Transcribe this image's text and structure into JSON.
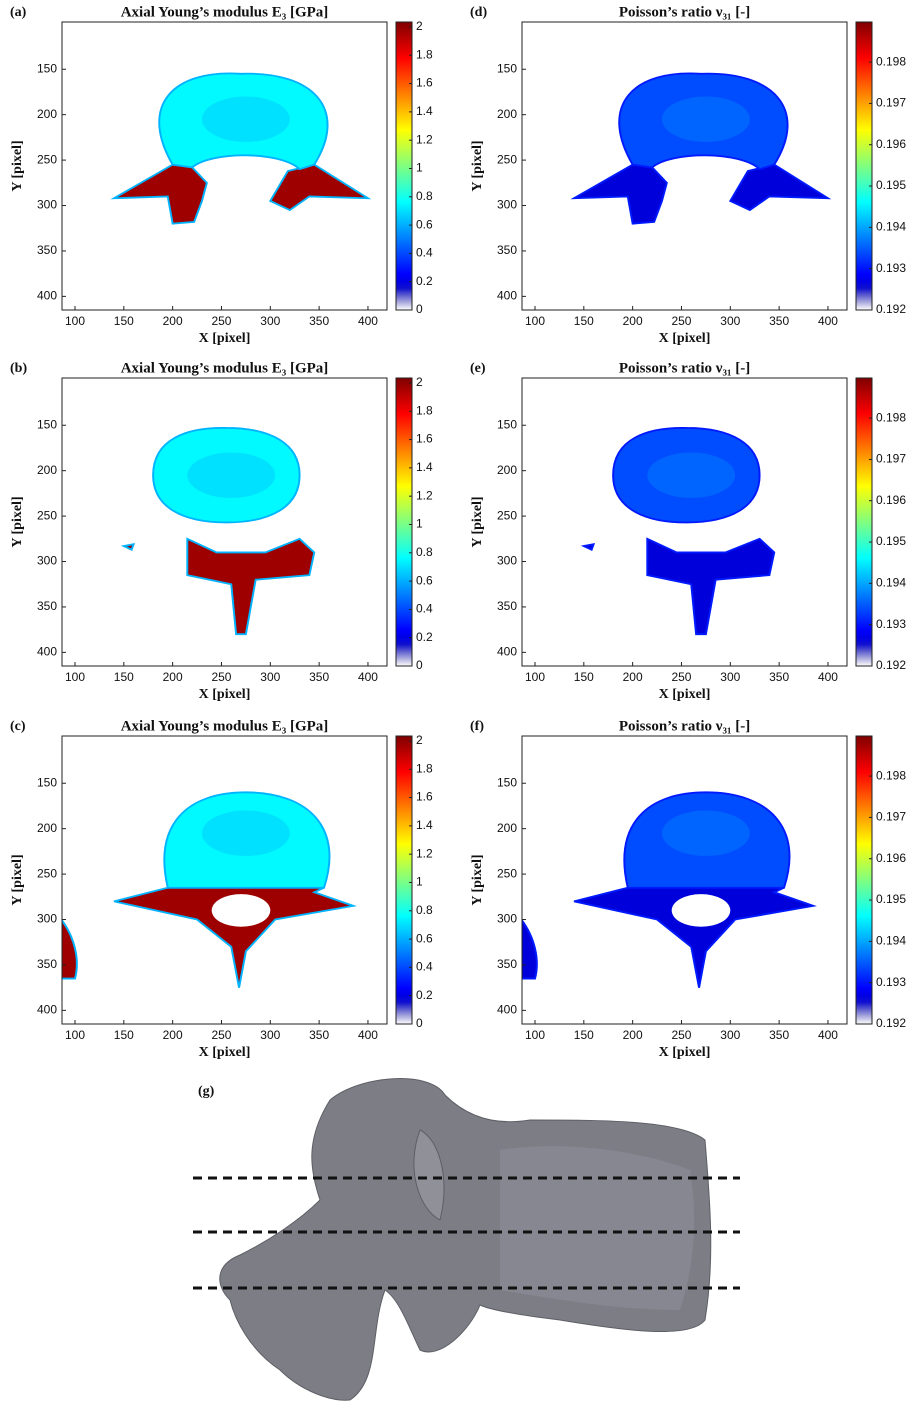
{
  "chart_data": [
    {
      "type": "heatmap",
      "panel_label": "(a)",
      "title": "Axial Young’s modulus E₃ [GPa]",
      "xlabel": "X [pixel]",
      "ylabel": "Y [pixel]",
      "xlim": [
        86.7,
        419.5
      ],
      "ylim": [
        98,
        415
      ],
      "y_reversed": true,
      "xticks": [
        100,
        150,
        200,
        250,
        300,
        350,
        400
      ],
      "yticks": [
        150,
        200,
        250,
        300,
        350,
        400
      ],
      "colormap": "jet",
      "clim": [
        0,
        2.035
      ],
      "cticks": [
        0,
        0.2,
        0.4,
        0.6,
        0.8,
        1,
        1.2,
        1.4,
        1.6,
        1.8,
        2
      ]
    },
    {
      "type": "heatmap",
      "panel_label": "(b)",
      "title": "Axial Young’s modulus E₃ [GPa]",
      "xlabel": "X [pixel]",
      "ylabel": "Y [pixel]",
      "xlim": [
        86.7,
        419.5
      ],
      "ylim": [
        98,
        415
      ],
      "y_reversed": true,
      "xticks": [
        100,
        150,
        200,
        250,
        300,
        350,
        400
      ],
      "yticks": [
        150,
        200,
        250,
        300,
        350,
        400
      ],
      "colormap": "jet",
      "clim": [
        0,
        2.035
      ],
      "cticks": [
        0,
        0.2,
        0.4,
        0.6,
        0.8,
        1,
        1.2,
        1.4,
        1.6,
        1.8,
        2
      ]
    },
    {
      "type": "heatmap",
      "panel_label": "(c)",
      "title": "Axial Young’s modulus E₃ [GPa]",
      "xlabel": "X [pixel]",
      "ylabel": "Y [pixel]",
      "xlim": [
        86.7,
        419.5
      ],
      "ylim": [
        98,
        415
      ],
      "y_reversed": true,
      "xticks": [
        100,
        150,
        200,
        250,
        300,
        350,
        400
      ],
      "yticks": [
        150,
        200,
        250,
        300,
        350,
        400
      ],
      "colormap": "jet",
      "clim": [
        0,
        2.035
      ],
      "cticks": [
        0,
        0.2,
        0.4,
        0.6,
        0.8,
        1,
        1.2,
        1.4,
        1.6,
        1.8,
        2
      ]
    },
    {
      "type": "heatmap",
      "panel_label": "(d)",
      "title": "Poisson’s ratio ν₃₁ [-]",
      "xlabel": "X [pixel]",
      "ylabel": "Y [pixel]",
      "xlim": [
        86.7,
        419.5
      ],
      "ylim": [
        98,
        415
      ],
      "y_reversed": true,
      "xticks": [
        100,
        150,
        200,
        250,
        300,
        350,
        400
      ],
      "yticks": [
        150,
        200,
        250,
        300,
        350,
        400
      ],
      "colormap": "jet",
      "clim": [
        0.192,
        0.19897
      ],
      "cticks": [
        0.192,
        0.193,
        0.194,
        0.195,
        0.196,
        0.197,
        0.198
      ]
    },
    {
      "type": "heatmap",
      "panel_label": "(e)",
      "title": "Poisson’s ratio ν₃₁ [-]",
      "xlabel": "X [pixel]",
      "ylabel": "Y [pixel]",
      "xlim": [
        86.7,
        419.5
      ],
      "ylim": [
        98,
        415
      ],
      "y_reversed": true,
      "xticks": [
        100,
        150,
        200,
        250,
        300,
        350,
        400
      ],
      "yticks": [
        150,
        200,
        250,
        300,
        350,
        400
      ],
      "colormap": "jet",
      "clim": [
        0.192,
        0.19897
      ],
      "cticks": [
        0.192,
        0.193,
        0.194,
        0.195,
        0.196,
        0.197,
        0.198
      ]
    },
    {
      "type": "heatmap",
      "panel_label": "(f)",
      "title": "Poisson’s ratio ν₃₁ [-]",
      "xlabel": "X [pixel]",
      "ylabel": "Y [pixel]",
      "xlim": [
        86.7,
        419.5
      ],
      "ylim": [
        98,
        415
      ],
      "y_reversed": true,
      "xticks": [
        100,
        150,
        200,
        250,
        300,
        350,
        400
      ],
      "yticks": [
        150,
        200,
        250,
        300,
        350,
        400
      ],
      "colormap": "jet",
      "clim": [
        0.192,
        0.19897
      ],
      "cticks": [
        0.192,
        0.193,
        0.194,
        0.195,
        0.196,
        0.197,
        0.198
      ]
    }
  ],
  "figure_g": {
    "label": "(g)"
  }
}
